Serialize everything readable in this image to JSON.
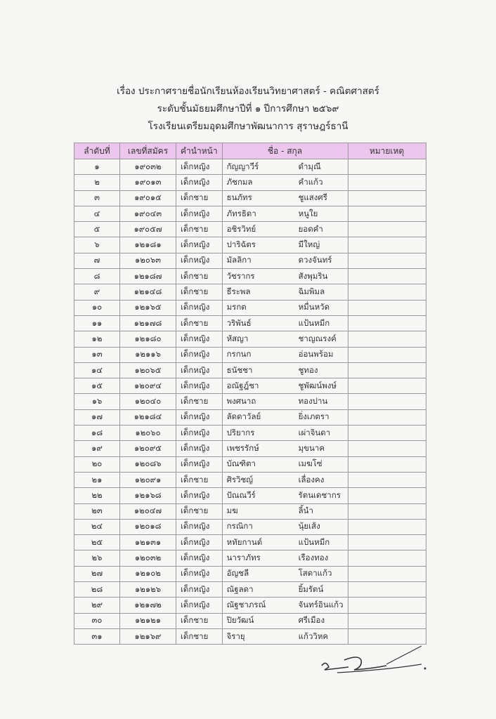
{
  "header": {
    "line1": "เรื่อง ประกาศรายชื่อนักเรียนห้องเรียนวิทยาศาสตร์ - คณิตศาสตร์",
    "line2": "ระดับชั้นมัธยมศึกษาปีที่ ๑ ปีการศึกษา ๒๕๖๙",
    "line3": "โรงเรียนเตรียมอุดมศึกษาพัฒนาการ สุราษฎร์ธานี"
  },
  "table": {
    "columns": [
      "ลำดับที่",
      "เลขที่สมัคร",
      "คำนำหน้า",
      "ชื่อ - สกุล",
      "หมายเหตุ"
    ],
    "header_color": "#ecc6ec",
    "rows": [
      [
        "๑",
        "๑๙๐๓๒",
        "เด็กหญิง",
        "กัญญาวีร์",
        "ดำมุณี",
        ""
      ],
      [
        "๒",
        "๑๙๐๑๓",
        "เด็กหญิง",
        "ภัชกมล",
        "คำแก้ว",
        ""
      ],
      [
        "๓",
        "๑๙๐๑๕",
        "เด็กชาย",
        "ธนภัทร",
        "ชูแสงศรี",
        ""
      ],
      [
        "๔",
        "๑๙๐๔๓",
        "เด็กหญิง",
        "ภัทรธิดา",
        "หนูใย",
        ""
      ],
      [
        "๕",
        "๑๙๐๕๗",
        "เด็กชาย",
        "อชิรวิทย์",
        "ยอดคำ",
        ""
      ],
      [
        "๖",
        "๑๒๑๘๑",
        "เด็กหญิง",
        "ปาริฉัตร",
        "มีใหญ่",
        ""
      ],
      [
        "๗",
        "๑๒๐๖๓",
        "เด็กหญิง",
        "มัลลิกา",
        "ดวงจันทร์",
        ""
      ],
      [
        "๘",
        "๑๒๑๘๗",
        "เด็กชาย",
        "วัชรากร",
        "สังพุมริน",
        ""
      ],
      [
        "๙",
        "๑๒๑๔๘",
        "เด็กชาย",
        "ธีระพล",
        "ฉิมพิมล",
        ""
      ],
      [
        "๑๐",
        "๑๒๑๖๕",
        "เด็กหญิง",
        "มรกต",
        "หมื่นหวัด",
        ""
      ],
      [
        "๑๑",
        "๑๒๑๗๘",
        "เด็กชาย",
        "วริพันธ์",
        "แป้นหมีก",
        ""
      ],
      [
        "๑๒",
        "๑๒๑๘๐",
        "เด็กหญิง",
        "หัสญา",
        "ชาญณรงค์",
        ""
      ],
      [
        "๑๓",
        "๑๒๑๑๖",
        "เด็กหญิง",
        "กรกนก",
        "อ่อนพร้อม",
        ""
      ],
      [
        "๑๔",
        "๑๒๐๖๕",
        "เด็กหญิง",
        "ธนัชชา",
        "ชูทอง",
        ""
      ],
      [
        "๑๕",
        "๑๒๐๙๔",
        "เด็กหญิง",
        "อณัฐฎ์ชา",
        "ชูพัฒน์พงษ์",
        ""
      ],
      [
        "๑๖",
        "๑๒๐๔๐",
        "เด็กชาย",
        "พงศนาถ",
        "ทองปาน",
        ""
      ],
      [
        "๑๗",
        "๑๒๑๘๔",
        "เด็กหญิง",
        "ลัดดาวัลย์",
        "ยิ่งเภตรา",
        ""
      ],
      [
        "๑๘",
        "๑๒๐๖๐",
        "เด็กหญิง",
        "ปริยากร",
        "เผ่าจินดา",
        ""
      ],
      [
        "๑๙",
        "๑๒๐๙๕",
        "เด็กหญิง",
        "เพชรรักษ์",
        "มุขนาค",
        ""
      ],
      [
        "๒๐",
        "๑๒๐๘๖",
        "เด็กหญิง",
        "บัณฑิตา",
        "เมฆโซ่",
        ""
      ],
      [
        "๒๑",
        "๑๒๐๙๑",
        "เด็กชาย",
        "ศิรวิชญ์",
        "เลื่องคง",
        ""
      ],
      [
        "๒๒",
        "๑๒๑๖๘",
        "เด็กหญิง",
        "ปัณณวีร์",
        "รัตนเดชากร",
        ""
      ],
      [
        "๒๓",
        "๑๒๐๔๗",
        "เด็กชาย",
        "มฆ",
        "ลิ้นำ",
        ""
      ],
      [
        "๒๔",
        "๑๒๐๑๘",
        "เด็กหญิง",
        "กรณิกา",
        "นุ้ยเส้ง",
        ""
      ],
      [
        "๒๕",
        "๑๒๑๓๑",
        "เด็กหญิง",
        "หทัยกานต์",
        "แป้นหมีก",
        ""
      ],
      [
        "๒๖",
        "๑๒๐๓๒",
        "เด็กหญิง",
        "นาราภัทร",
        "เรืองทอง",
        ""
      ],
      [
        "๒๗",
        "๑๒๑๐๒",
        "เด็กหญิง",
        "อัญชลี",
        "โสดาแก้ว",
        ""
      ],
      [
        "๒๘",
        "๑๒๑๒๖",
        "เด็กหญิง",
        "ณัฐลดา",
        "ยิ้มรัตน์",
        ""
      ],
      [
        "๒๙",
        "๑๒๑๗๒",
        "เด็กหญิง",
        "ณัฐชาภรณ์",
        "จันทร์อินแก้ว",
        ""
      ],
      [
        "๓๐",
        "๑๒๑๒๑",
        "เด็กชาย",
        "ปิยวัฒน์",
        "ศรีเมือง",
        ""
      ],
      [
        "๓๑",
        "๑๒๑๖๙",
        "เด็กชาย",
        "จิรายุ",
        "แก้ววิหค",
        ""
      ]
    ]
  }
}
